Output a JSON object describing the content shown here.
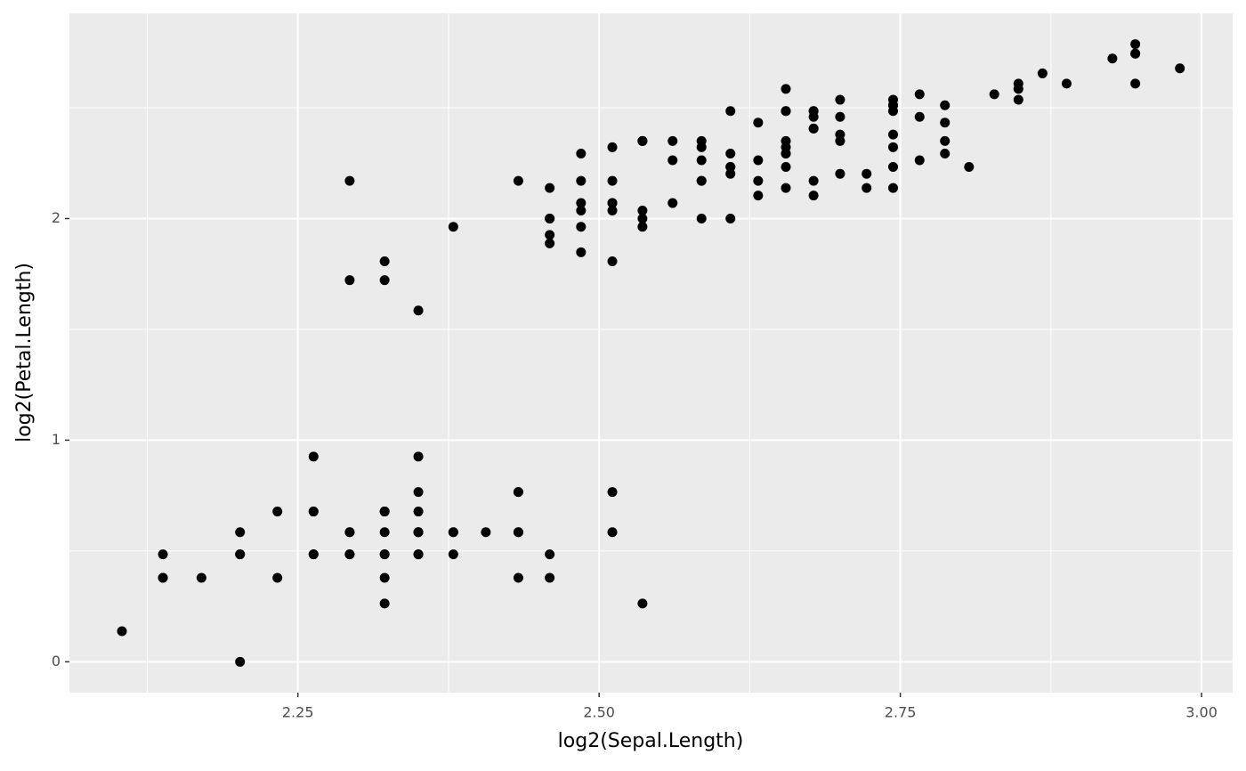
{
  "chart_data": {
    "type": "scatter",
    "x_label": "log2(Sepal.Length)",
    "y_label": "log2(Petal.Length)",
    "xlim": [
      2.0604,
      3.0258
    ],
    "ylim": [
      -0.1393,
      2.9259
    ],
    "xticks": [
      2.25,
      {
        "value": 2.5,
        "label": "2.50"
      },
      2.75,
      {
        "value": 3.0,
        "label": "3.00"
      }
    ],
    "yticks": [
      0,
      1,
      2
    ],
    "grid": true,
    "color": "#000000",
    "x": [
      2.35,
      2.293,
      2.233,
      2.202,
      2.322,
      2.433,
      2.202,
      2.322,
      2.138,
      2.293,
      2.433,
      2.263,
      2.263,
      2.104,
      2.536,
      2.511,
      2.433,
      2.35,
      2.511,
      2.35,
      2.433,
      2.35,
      2.202,
      2.35,
      2.263,
      2.322,
      2.322,
      2.379,
      2.379,
      2.233,
      2.263,
      2.433,
      2.379,
      2.459,
      2.293,
      2.322,
      2.459,
      2.293,
      2.138,
      2.35,
      2.322,
      2.17,
      2.138,
      2.322,
      2.35,
      2.263,
      2.35,
      2.202,
      2.406,
      2.322,
      2.807,
      2.678,
      2.787,
      2.459,
      2.7,
      2.511,
      2.655,
      2.293,
      2.722,
      2.379,
      2.322,
      2.561,
      2.585,
      2.609,
      2.485,
      2.744,
      2.485,
      2.536,
      2.632,
      2.485,
      2.561,
      2.609,
      2.655,
      2.609,
      2.678,
      2.722,
      2.766,
      2.744,
      2.585,
      2.511,
      2.459,
      2.459,
      2.536,
      2.585,
      2.433,
      2.585,
      2.744,
      2.655,
      2.485,
      2.459,
      2.459,
      2.609,
      2.536,
      2.322,
      2.485,
      2.511,
      2.511,
      2.632,
      2.35,
      2.511,
      2.655,
      2.536,
      2.828,
      2.655,
      2.7,
      2.926,
      2.293,
      2.868,
      2.744,
      2.848,
      2.7,
      2.678,
      2.766,
      2.511,
      2.536,
      2.678,
      2.7,
      2.945,
      2.945,
      2.585,
      2.787,
      2.485,
      2.945,
      2.655,
      2.744,
      2.848,
      2.632,
      2.609,
      2.678,
      2.848,
      2.888,
      2.982,
      2.678,
      2.655,
      2.609,
      2.945,
      2.655,
      2.678,
      2.585,
      2.787,
      2.744,
      2.787,
      2.536,
      2.766,
      2.744,
      2.744,
      2.655,
      2.7,
      2.632,
      2.561
    ],
    "values": [
      0.485,
      0.485,
      0.379,
      0.585,
      0.485,
      0.766,
      0.485,
      0.585,
      0.485,
      0.585,
      0.585,
      0.678,
      0.485,
      0.138,
      0.263,
      0.585,
      0.379,
      0.485,
      0.766,
      0.585,
      0.766,
      0.585,
      0,
      0.766,
      0.926,
      0.678,
      0.678,
      0.585,
      0.485,
      0.678,
      0.678,
      0.585,
      0.585,
      0.485,
      0.585,
      0.263,
      0.379,
      0.485,
      0.379,
      0.585,
      0.379,
      0.379,
      0.379,
      0.678,
      0.926,
      0.485,
      0.678,
      0.485,
      0.585,
      0.485,
      2.233,
      2.17,
      2.293,
      2,
      2.202,
      2.17,
      2.233,
      1.722,
      2.202,
      1.963,
      1.807,
      2.07,
      2,
      2.233,
      1.848,
      2.138,
      2.17,
      2.036,
      2.17,
      1.963,
      2.263,
      2,
      2.293,
      2.233,
      2.104,
      2.138,
      2.263,
      2.322,
      2.17,
      1.807,
      1.926,
      1.888,
      1.963,
      2.35,
      2.17,
      2.17,
      2.233,
      2.138,
      2.036,
      2,
      2.138,
      2.202,
      2,
      1.722,
      2.07,
      2.07,
      2.07,
      2.104,
      1.585,
      2.036,
      2.585,
      2.35,
      2.561,
      2.485,
      2.536,
      2.722,
      2.17,
      2.655,
      2.536,
      2.609,
      2.35,
      2.406,
      2.459,
      2.322,
      2.35,
      2.406,
      2.459,
      2.744,
      2.787,
      2.322,
      2.511,
      2.293,
      2.744,
      2.293,
      2.511,
      2.585,
      2.263,
      2.293,
      2.485,
      2.536,
      2.609,
      2.678,
      2.485,
      2.35,
      2.485,
      2.609,
      2.485,
      2.459,
      2.263,
      2.433,
      2.485,
      2.35,
      2.35,
      2.561,
      2.511,
      2.379,
      2.322,
      2.379,
      2.433,
      2.35
    ]
  }
}
